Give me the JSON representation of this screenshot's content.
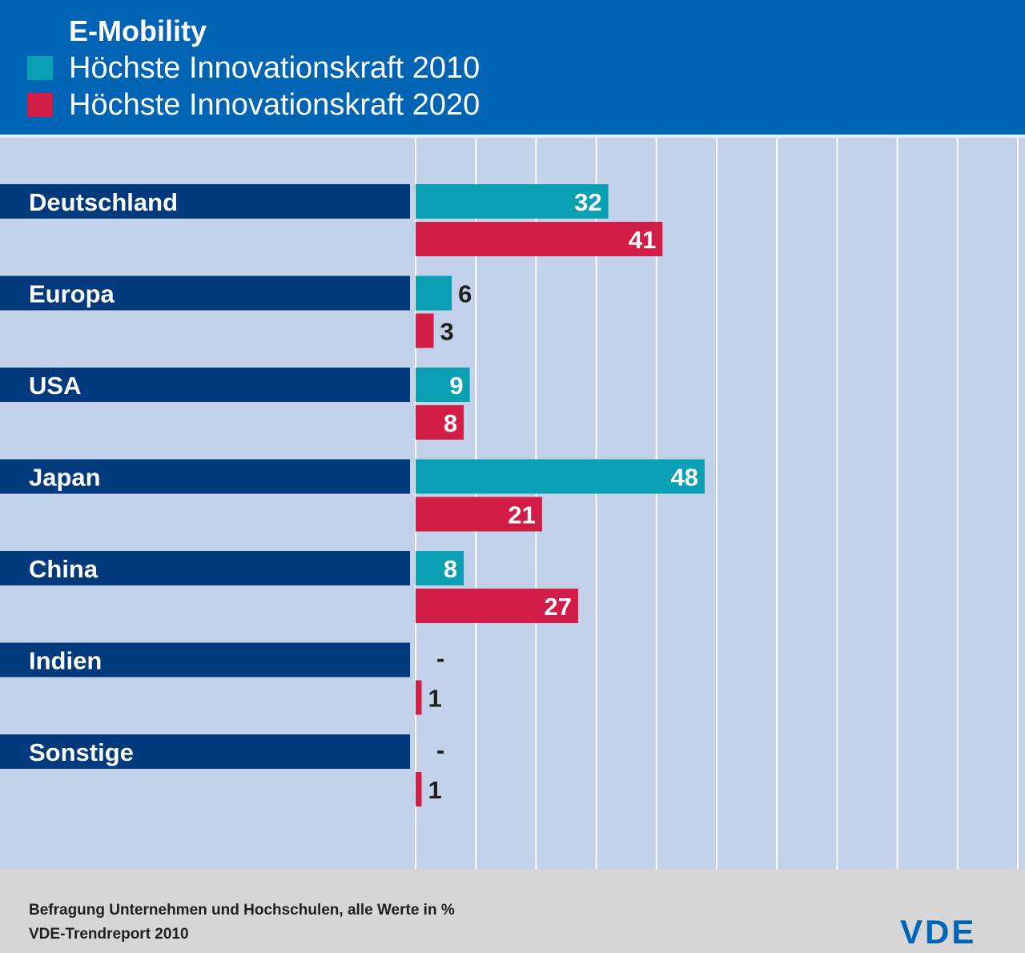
{
  "chart_data": {
    "type": "bar",
    "orientation": "horizontal",
    "title": "E-Mobility",
    "categories": [
      "Deutschland",
      "Europa",
      "USA",
      "Japan",
      "China",
      "Indien",
      "Sonstige"
    ],
    "series": [
      {
        "name": "Höchste Innovationskraft 2010",
        "color": "#0aa0b4",
        "values": [
          32,
          6,
          9,
          48,
          8,
          null,
          null
        ],
        "labels": [
          "32",
          "6",
          "9",
          "48",
          "8",
          "-",
          "-"
        ]
      },
      {
        "name": "Höchste Innovationskraft 2020",
        "color": "#d21e46",
        "values": [
          41,
          3,
          8,
          21,
          27,
          1,
          1
        ],
        "labels": [
          "41",
          "3",
          "8",
          "21",
          "27",
          "1",
          "1"
        ]
      }
    ],
    "xlim": [
      0,
      100
    ],
    "xticks": [
      0,
      10,
      20,
      30,
      40,
      50,
      60,
      70,
      80,
      90
    ],
    "grid": true,
    "legend_position": "top-left"
  },
  "footer": {
    "note_line1": "Befragung Unternehmen und Hochschulen, alle Werte in %",
    "note_line2": "VDE-Trendreport 2010",
    "logo": "VDE"
  },
  "colors": {
    "header_bg": "#0064b4",
    "plot_bg": "#c3d2ea",
    "category_band": "#003a7d",
    "footer_bg": "#d6d6d6"
  }
}
